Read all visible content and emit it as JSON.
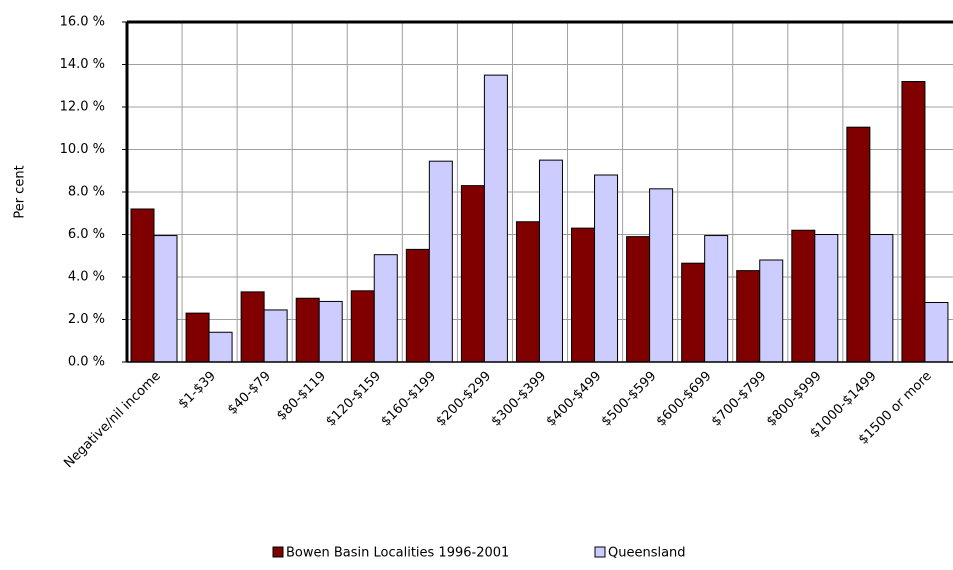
{
  "chart_data": {
    "type": "bar",
    "y_label": "Per cent",
    "categories": [
      "Negative/nil income",
      "$1-$39",
      "$40-$79",
      "$80-$119",
      "$120-$159",
      "$160-$199",
      "$200-$299",
      "$300-$399",
      "$400-$499",
      "$500-$599",
      "$600-$699",
      "$700-$799",
      "$800-$999",
      "$1000-$1499",
      "$1500 or more"
    ],
    "series": [
      {
        "name": "Bowen Basin Localities 1996-2001",
        "color": "#800000",
        "values": [
          7.2,
          2.3,
          3.3,
          3.0,
          3.35,
          5.3,
          8.3,
          6.6,
          6.3,
          5.9,
          4.65,
          4.3,
          6.2,
          11.05,
          13.2
        ]
      },
      {
        "name": "Queensland",
        "color": "#ccccff",
        "values": [
          5.95,
          1.4,
          2.45,
          2.85,
          5.05,
          9.45,
          13.5,
          9.5,
          8.8,
          8.15,
          5.95,
          4.8,
          6.0,
          6.0,
          2.8
        ]
      }
    ],
    "ylim": [
      0,
      16
    ],
    "yticks": [
      {
        "value": 0,
        "label": "0.0 %"
      },
      {
        "value": 2,
        "label": "2.0 %"
      },
      {
        "value": 4,
        "label": "4.0 %"
      },
      {
        "value": 6,
        "label": "6.0 %"
      },
      {
        "value": 8,
        "label": "8.0 %"
      },
      {
        "value": 10,
        "label": "10.0 %"
      },
      {
        "value": 12,
        "label": "12.0 %"
      },
      {
        "value": 14,
        "label": "14.0 %"
      },
      {
        "value": 16,
        "label": "16.0 %"
      }
    ],
    "grid": true,
    "legend": "bottom"
  }
}
